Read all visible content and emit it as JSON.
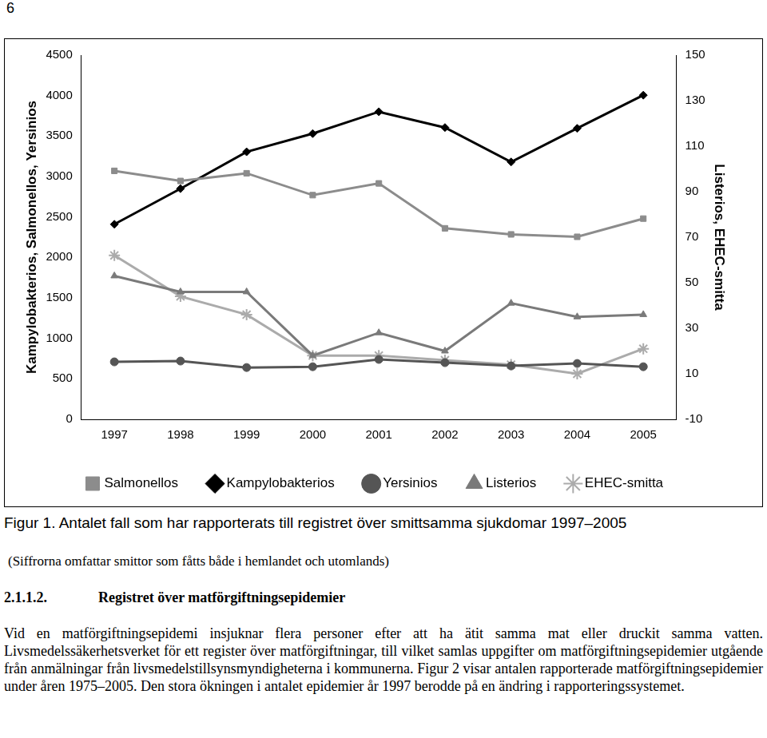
{
  "page_number": "6",
  "chart_data": {
    "type": "line",
    "categories": [
      "1997",
      "1998",
      "1999",
      "2000",
      "2001",
      "2002",
      "2003",
      "2004",
      "2005"
    ],
    "y_label": "Kampylobakterios, Salmonellos, Yersinios",
    "y2_label": "Listerios, EHEC-smitta",
    "ylim": [
      0,
      4500
    ],
    "yticks": [
      0,
      500,
      1000,
      1500,
      2000,
      2500,
      3000,
      3500,
      4000,
      4500
    ],
    "y2lim": [
      -10,
      150
    ],
    "y2ticks": [
      -10,
      10,
      30,
      50,
      70,
      90,
      110,
      130,
      150
    ],
    "grid": false,
    "legend": "bottom",
    "series": [
      {
        "name": "Salmonellos",
        "color": "#8c8c8c",
        "marker": "square",
        "values": [
          3070,
          2945,
          3040,
          2770,
          2915,
          2360,
          2285,
          2255,
          2480
        ]
      },
      {
        "name": "Kampylobakterios",
        "color": "#000000",
        "marker": "diamond",
        "values": [
          2410,
          2850,
          3305,
          3530,
          3800,
          3605,
          3180,
          3595,
          4005
        ]
      },
      {
        "name": "Yersinios",
        "color": "#555555",
        "marker": "circle",
        "values": [
          710,
          720,
          640,
          650,
          740,
          700,
          660,
          690,
          650
        ]
      },
      {
        "name": "Listerios",
        "color": "#7a7a7a",
        "marker": "triangle",
        "axis": "y2",
        "values": [
          53,
          46,
          46,
          18,
          28,
          20,
          41,
          35,
          36
        ]
      },
      {
        "name": "EHEC-smitta",
        "color": "#ababab",
        "marker": "star",
        "axis": "y2",
        "values": [
          62,
          44,
          36,
          18,
          18,
          16,
          14,
          10,
          21
        ]
      }
    ]
  },
  "caption": {
    "title": "Figur 1. Antalet fall som har rapporterats till registret över smittsamma sjukdomar 1997–2005",
    "note": "(Siffrorna omfattar smittor som fåtts både i hemlandet och utomlands)"
  },
  "section": {
    "number": "2.1.1.2.",
    "title": "Registret över matförgiftningsepidemier",
    "text": "Vid en matförgiftningsepidemi insjuknar flera personer efter att ha ätit samma mat eller druckit samma vatten. Livsmedelssäkerhetsverket för ett register över matförgiftningar, till vilket samlas uppgifter om matförgiftningsepidemier utgående från anmälningar från livsmedelstillsynsmyndigheterna i kommunerna. Figur 2 visar antalen rapporterade matförgiftningsepidemier under åren 1975–2005. Den stora ökningen i antalet epidemier år 1997 berodde på en ändring i rapporteringssystemet."
  }
}
